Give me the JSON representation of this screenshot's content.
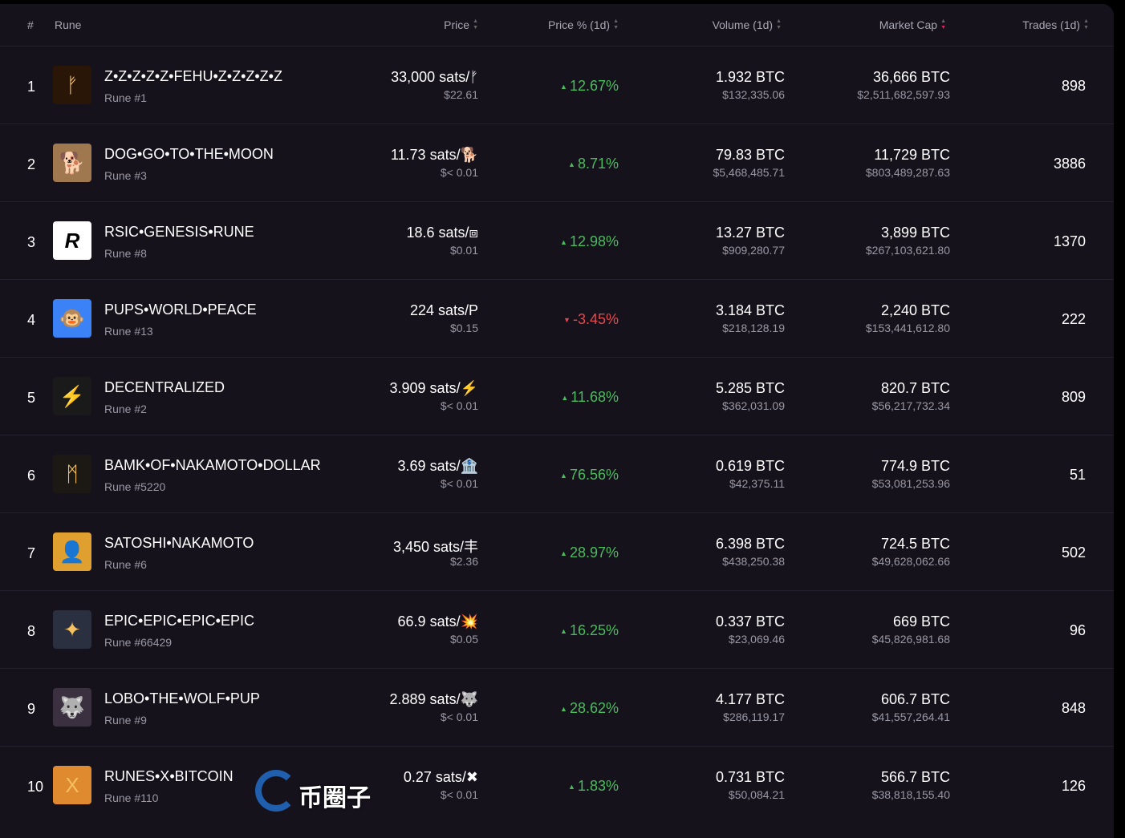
{
  "header": {
    "rank": "#",
    "rune": "Rune",
    "price": "Price",
    "price_pct": "Price % (1d)",
    "volume": "Volume (1d)",
    "market_cap": "Market Cap",
    "trades": "Trades (1d)"
  },
  "rows": [
    {
      "rank": "1",
      "name": "Z•Z•Z•Z•Z•FEHU•Z•Z•Z•Z•Z",
      "sub": "Rune #1",
      "price": "33,000 sats/ᚠ",
      "price_usd": "$22.61",
      "pct": "12.67%",
      "dir": "up",
      "vol": "1.932 BTC",
      "vol_usd": "$132,335.06",
      "mcap": "36,666 BTC",
      "mcap_usd": "$2,511,682,597.93",
      "trades": "898",
      "icon": "ᚠ",
      "bg": "#2a1606"
    },
    {
      "rank": "2",
      "name": "DOG•GO•TO•THE•MOON",
      "sub": "Rune #3",
      "price": "11.73 sats/🐕",
      "price_usd": "$< 0.01",
      "pct": "8.71%",
      "dir": "up",
      "vol": "79.83 BTC",
      "vol_usd": "$5,468,485.71",
      "mcap": "11,729 BTC",
      "mcap_usd": "$803,489,287.63",
      "trades": "3886",
      "icon": "🐕",
      "bg": "#a07850"
    },
    {
      "rank": "3",
      "name": "RSIC•GENESIS•RUNE",
      "sub": "Rune #8",
      "price": "18.6 sats/⧈",
      "price_usd": "$0.01",
      "pct": "12.98%",
      "dir": "up",
      "vol": "13.27 BTC",
      "vol_usd": "$909,280.77",
      "mcap": "3,899 BTC",
      "mcap_usd": "$267,103,621.80",
      "trades": "1370",
      "icon": "R",
      "bg": "#ffffff"
    },
    {
      "rank": "4",
      "name": "PUPS•WORLD•PEACE",
      "sub": "Rune #13",
      "price": "224 sats/P",
      "price_usd": "$0.15",
      "pct": "-3.45%",
      "dir": "down",
      "vol": "3.184 BTC",
      "vol_usd": "$218,128.19",
      "mcap": "2,240 BTC",
      "mcap_usd": "$153,441,612.80",
      "trades": "222",
      "icon": "🐵",
      "bg": "#3b82f6"
    },
    {
      "rank": "5",
      "name": "DECENTRALIZED",
      "sub": "Rune #2",
      "price": "3.909 sats/⚡",
      "price_usd": "$< 0.01",
      "pct": "11.68%",
      "dir": "up",
      "vol": "5.285 BTC",
      "vol_usd": "$362,031.09",
      "mcap": "820.7 BTC",
      "mcap_usd": "$56,217,732.34",
      "trades": "809",
      "icon": "⚡",
      "bg": "#1a1a1a"
    },
    {
      "rank": "6",
      "name": "BAMK•OF•NAKAMOTO•DOLLAR",
      "sub": "Rune #5220",
      "price": "3.69 sats/🏦",
      "price_usd": "$< 0.01",
      "pct": "76.56%",
      "dir": "up",
      "vol": "0.619 BTC",
      "vol_usd": "$42,375.11",
      "mcap": "774.9 BTC",
      "mcap_usd": "$53,081,253.96",
      "trades": "51",
      "icon": "ᛗ",
      "bg": "#1c1814"
    },
    {
      "rank": "7",
      "name": "SATOSHI•NAKAMOTO",
      "sub": "Rune #6",
      "price": "3,450 sats/丰",
      "price_usd": "$2.36",
      "pct": "28.97%",
      "dir": "up",
      "vol": "6.398 BTC",
      "vol_usd": "$438,250.38",
      "mcap": "724.5 BTC",
      "mcap_usd": "$49,628,062.66",
      "trades": "502",
      "icon": "👤",
      "bg": "#e0a030"
    },
    {
      "rank": "8",
      "name": "EPIC•EPIC•EPIC•EPIC",
      "sub": "Rune #66429",
      "price": "66.9 sats/💥",
      "price_usd": "$0.05",
      "pct": "16.25%",
      "dir": "up",
      "vol": "0.337 BTC",
      "vol_usd": "$23,069.46",
      "mcap": "669 BTC",
      "mcap_usd": "$45,826,981.68",
      "trades": "96",
      "icon": "✦",
      "bg": "#2a3040"
    },
    {
      "rank": "9",
      "name": "LOBO•THE•WOLF•PUP",
      "sub": "Rune #9",
      "price": "2.889 sats/🐺",
      "price_usd": "$< 0.01",
      "pct": "28.62%",
      "dir": "up",
      "vol": "4.177 BTC",
      "vol_usd": "$286,119.17",
      "mcap": "606.7 BTC",
      "mcap_usd": "$41,557,264.41",
      "trades": "848",
      "icon": "🐺",
      "bg": "#3a3040"
    },
    {
      "rank": "10",
      "name": "RUNES•X•BITCOIN",
      "sub": "Rune #110",
      "price": "0.27 sats/✖",
      "price_usd": "$< 0.01",
      "pct": "1.83%",
      "dir": "up",
      "vol": "0.731 BTC",
      "vol_usd": "$50,084.21",
      "mcap": "566.7 BTC",
      "mcap_usd": "$38,818,155.40",
      "trades": "126",
      "icon": "X",
      "bg": "#e08a30"
    }
  ],
  "watermark": "币圈子"
}
